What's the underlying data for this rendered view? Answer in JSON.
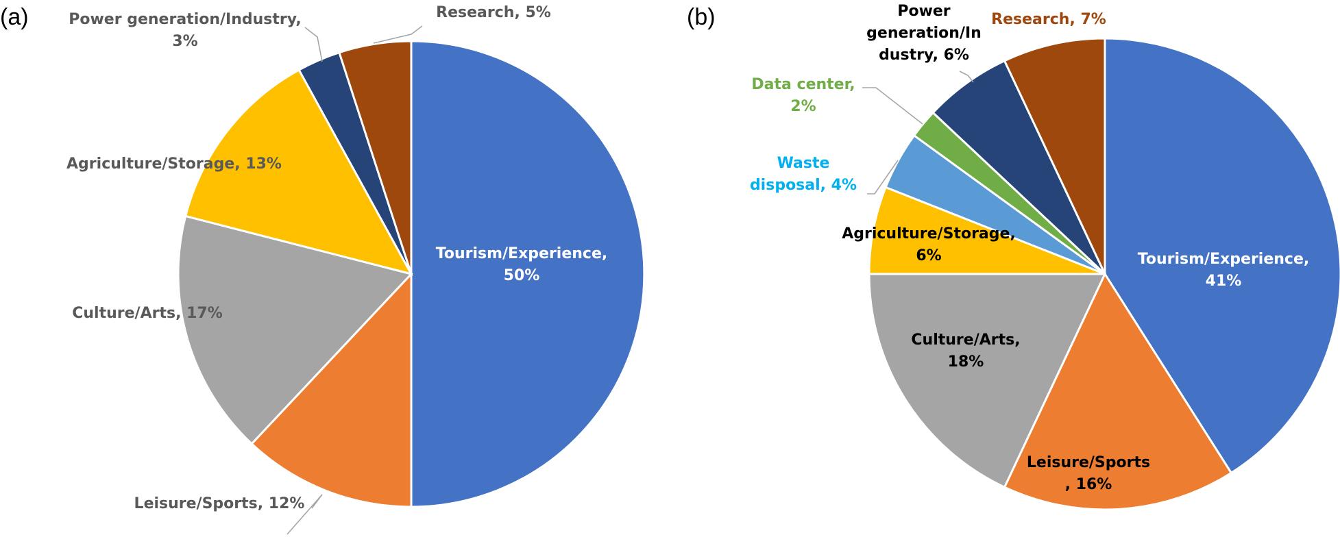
{
  "chart_data": [
    {
      "type": "pie",
      "panel_label": "(a)",
      "slices": [
        {
          "label": [
            "Tourism/Experience,",
            "50%"
          ],
          "value": 50,
          "color": "#4472c4"
        },
        {
          "label": [
            "Leisure/Sports, 12%"
          ],
          "value": 12,
          "color": "#ed7d31"
        },
        {
          "label": [
            "Culture/Arts, 17%"
          ],
          "value": 17,
          "color": "#a5a5a5"
        },
        {
          "label": [
            "Agriculture/Storage, 13%"
          ],
          "value": 13,
          "color": "#ffc000"
        },
        {
          "label": [
            "Power generation/Industry,",
            "3%"
          ],
          "value": 3,
          "color": "#264478"
        },
        {
          "label": [
            "Research, 5%"
          ],
          "value": 5,
          "color": "#9e480e"
        }
      ]
    },
    {
      "type": "pie",
      "panel_label": "(b)",
      "slices": [
        {
          "label": [
            "Tourism/Experience,",
            "41%"
          ],
          "value": 41,
          "color": "#4472c4"
        },
        {
          "label": [
            "Leisure/Sports",
            ", 16%"
          ],
          "value": 16,
          "color": "#ed7d31"
        },
        {
          "label": [
            "Culture/Arts,",
            "18%"
          ],
          "value": 18,
          "color": "#a5a5a5"
        },
        {
          "label": [
            "Agriculture/Storage,",
            "6%"
          ],
          "value": 6,
          "color": "#ffc000"
        },
        {
          "label": [
            "Waste",
            "disposal, 4%"
          ],
          "value": 4,
          "color": "#5b9bd5"
        },
        {
          "label": [
            "Data center,",
            "2%"
          ],
          "value": 2,
          "color": "#70ad47"
        },
        {
          "label": [
            "Power",
            "generation/In",
            "dustry, 6%"
          ],
          "value": 6,
          "color": "#264478"
        },
        {
          "label": [
            "Research, 7%"
          ],
          "value": 7,
          "color": "#9e480e"
        }
      ]
    }
  ]
}
